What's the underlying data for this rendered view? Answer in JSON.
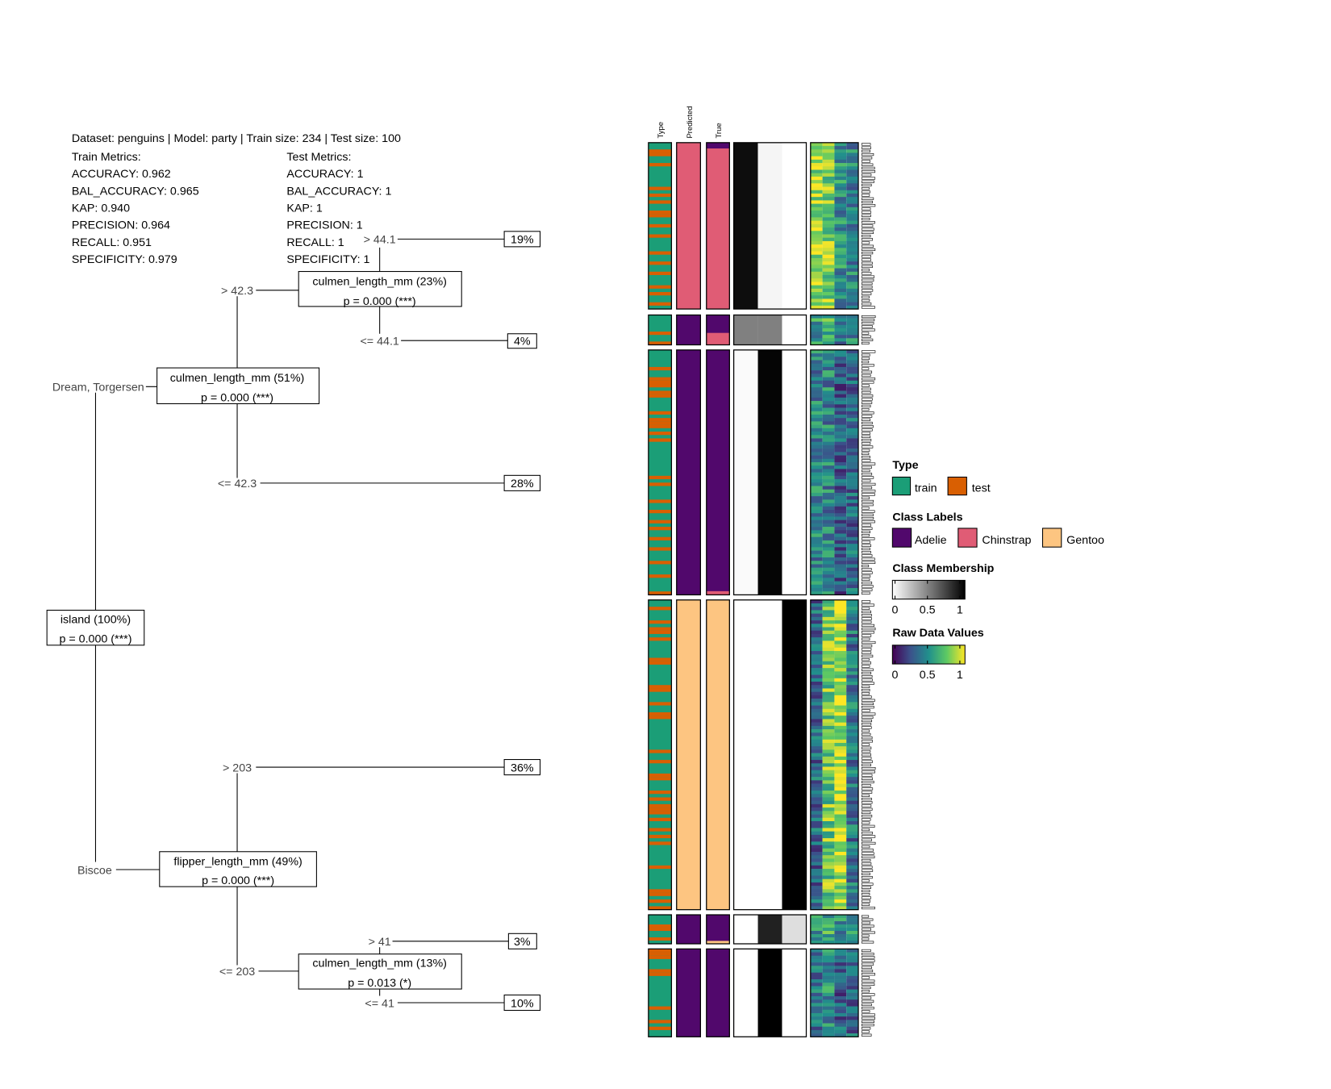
{
  "header": {
    "summary": "Dataset: penguins | Model: party | Train size: 234 | Test size: 100"
  },
  "train_metrics": {
    "title": "Train Metrics:",
    "lines": [
      "ACCURACY: 0.962",
      "BAL_ACCURACY: 0.965",
      "KAP: 0.940",
      "PRECISION: 0.964",
      "RECALL: 0.951",
      "SPECIFICITY: 0.979"
    ]
  },
  "test_metrics": {
    "title": "Test Metrics:",
    "lines": [
      "ACCURACY: 1",
      "BAL_ACCURACY: 1",
      "KAP: 1",
      "PRECISION: 1",
      "RECALL: 1",
      "SPECIFICITY: 1"
    ]
  },
  "tree": {
    "root": {
      "label": "island (100%)",
      "p": "p = 0.000 (***)"
    },
    "branch_dream": "Dream, Torgersen",
    "branch_biscoe": "Biscoe",
    "node_culmen51": {
      "label": "culmen_length_mm (51%)",
      "p": "p = 0.000 (***)"
    },
    "edge_gt_42_3": "> 42.3",
    "edge_le_42_3": "<= 42.3",
    "node_culmen23": {
      "label": "culmen_length_mm (23%)",
      "p": "p = 0.000 (***)"
    },
    "edge_gt_44_1": "> 44.1",
    "edge_le_44_1": "<= 44.1",
    "leaf_19": "19%",
    "leaf_4": "4%",
    "leaf_28": "28%",
    "node_flipper49": {
      "label": "flipper_length_mm (49%)",
      "p": "p = 0.000 (***)"
    },
    "edge_gt_203": "> 203",
    "edge_le_203": "<= 203",
    "leaf_36": "36%",
    "node_culmen13": {
      "label": "culmen_length_mm (13%)",
      "p": "p = 0.013 (*)"
    },
    "edge_gt_41": "> 41",
    "edge_le_41": "<= 41",
    "leaf_3": "3%",
    "leaf_10": "10%"
  },
  "heatmap": {
    "column_headers": [
      "Type",
      "Predicted",
      "True"
    ],
    "blocks": [
      {
        "predicted": "Chinstrap",
        "true": [
          "Adelie",
          "Chinstrap"
        ],
        "membership": [
          0.95,
          0.04,
          0
        ]
      },
      {
        "predicted": "Adelie",
        "true": [
          "Adelie",
          "Chinstrap"
        ],
        "membership": [
          0.5,
          0.5,
          0
        ]
      },
      {
        "predicted": "Adelie",
        "true": [
          "Adelie",
          "Chinstrap"
        ],
        "membership": [
          0.02,
          0.98,
          0
        ]
      },
      {
        "predicted": "Gentoo",
        "true": [
          "Gentoo"
        ],
        "membership": [
          0,
          0,
          1
        ]
      },
      {
        "predicted": "Adelie",
        "true": [
          "Adelie",
          "Gentoo"
        ],
        "membership": [
          0,
          0.87,
          0.13
        ]
      },
      {
        "predicted": "Adelie",
        "true": [
          "Adelie"
        ],
        "membership": [
          0,
          1,
          0
        ]
      }
    ]
  },
  "legend": {
    "type_title": "Type",
    "type_items": [
      {
        "label": "train",
        "color": "#1b9e77"
      },
      {
        "label": "test",
        "color": "#d95f02"
      }
    ],
    "class_title": "Class Labels",
    "class_items": [
      {
        "label": "Adelie",
        "color": "#51086c"
      },
      {
        "label": "Chinstrap",
        "color": "#e05c75"
      },
      {
        "label": "Gentoo",
        "color": "#fdc581"
      }
    ],
    "membership_title": "Class Membership",
    "membership_ticks": [
      "0",
      "0.5",
      "1"
    ],
    "raw_title": "Raw Data Values",
    "raw_ticks": [
      "0",
      "0.5",
      "1"
    ]
  }
}
